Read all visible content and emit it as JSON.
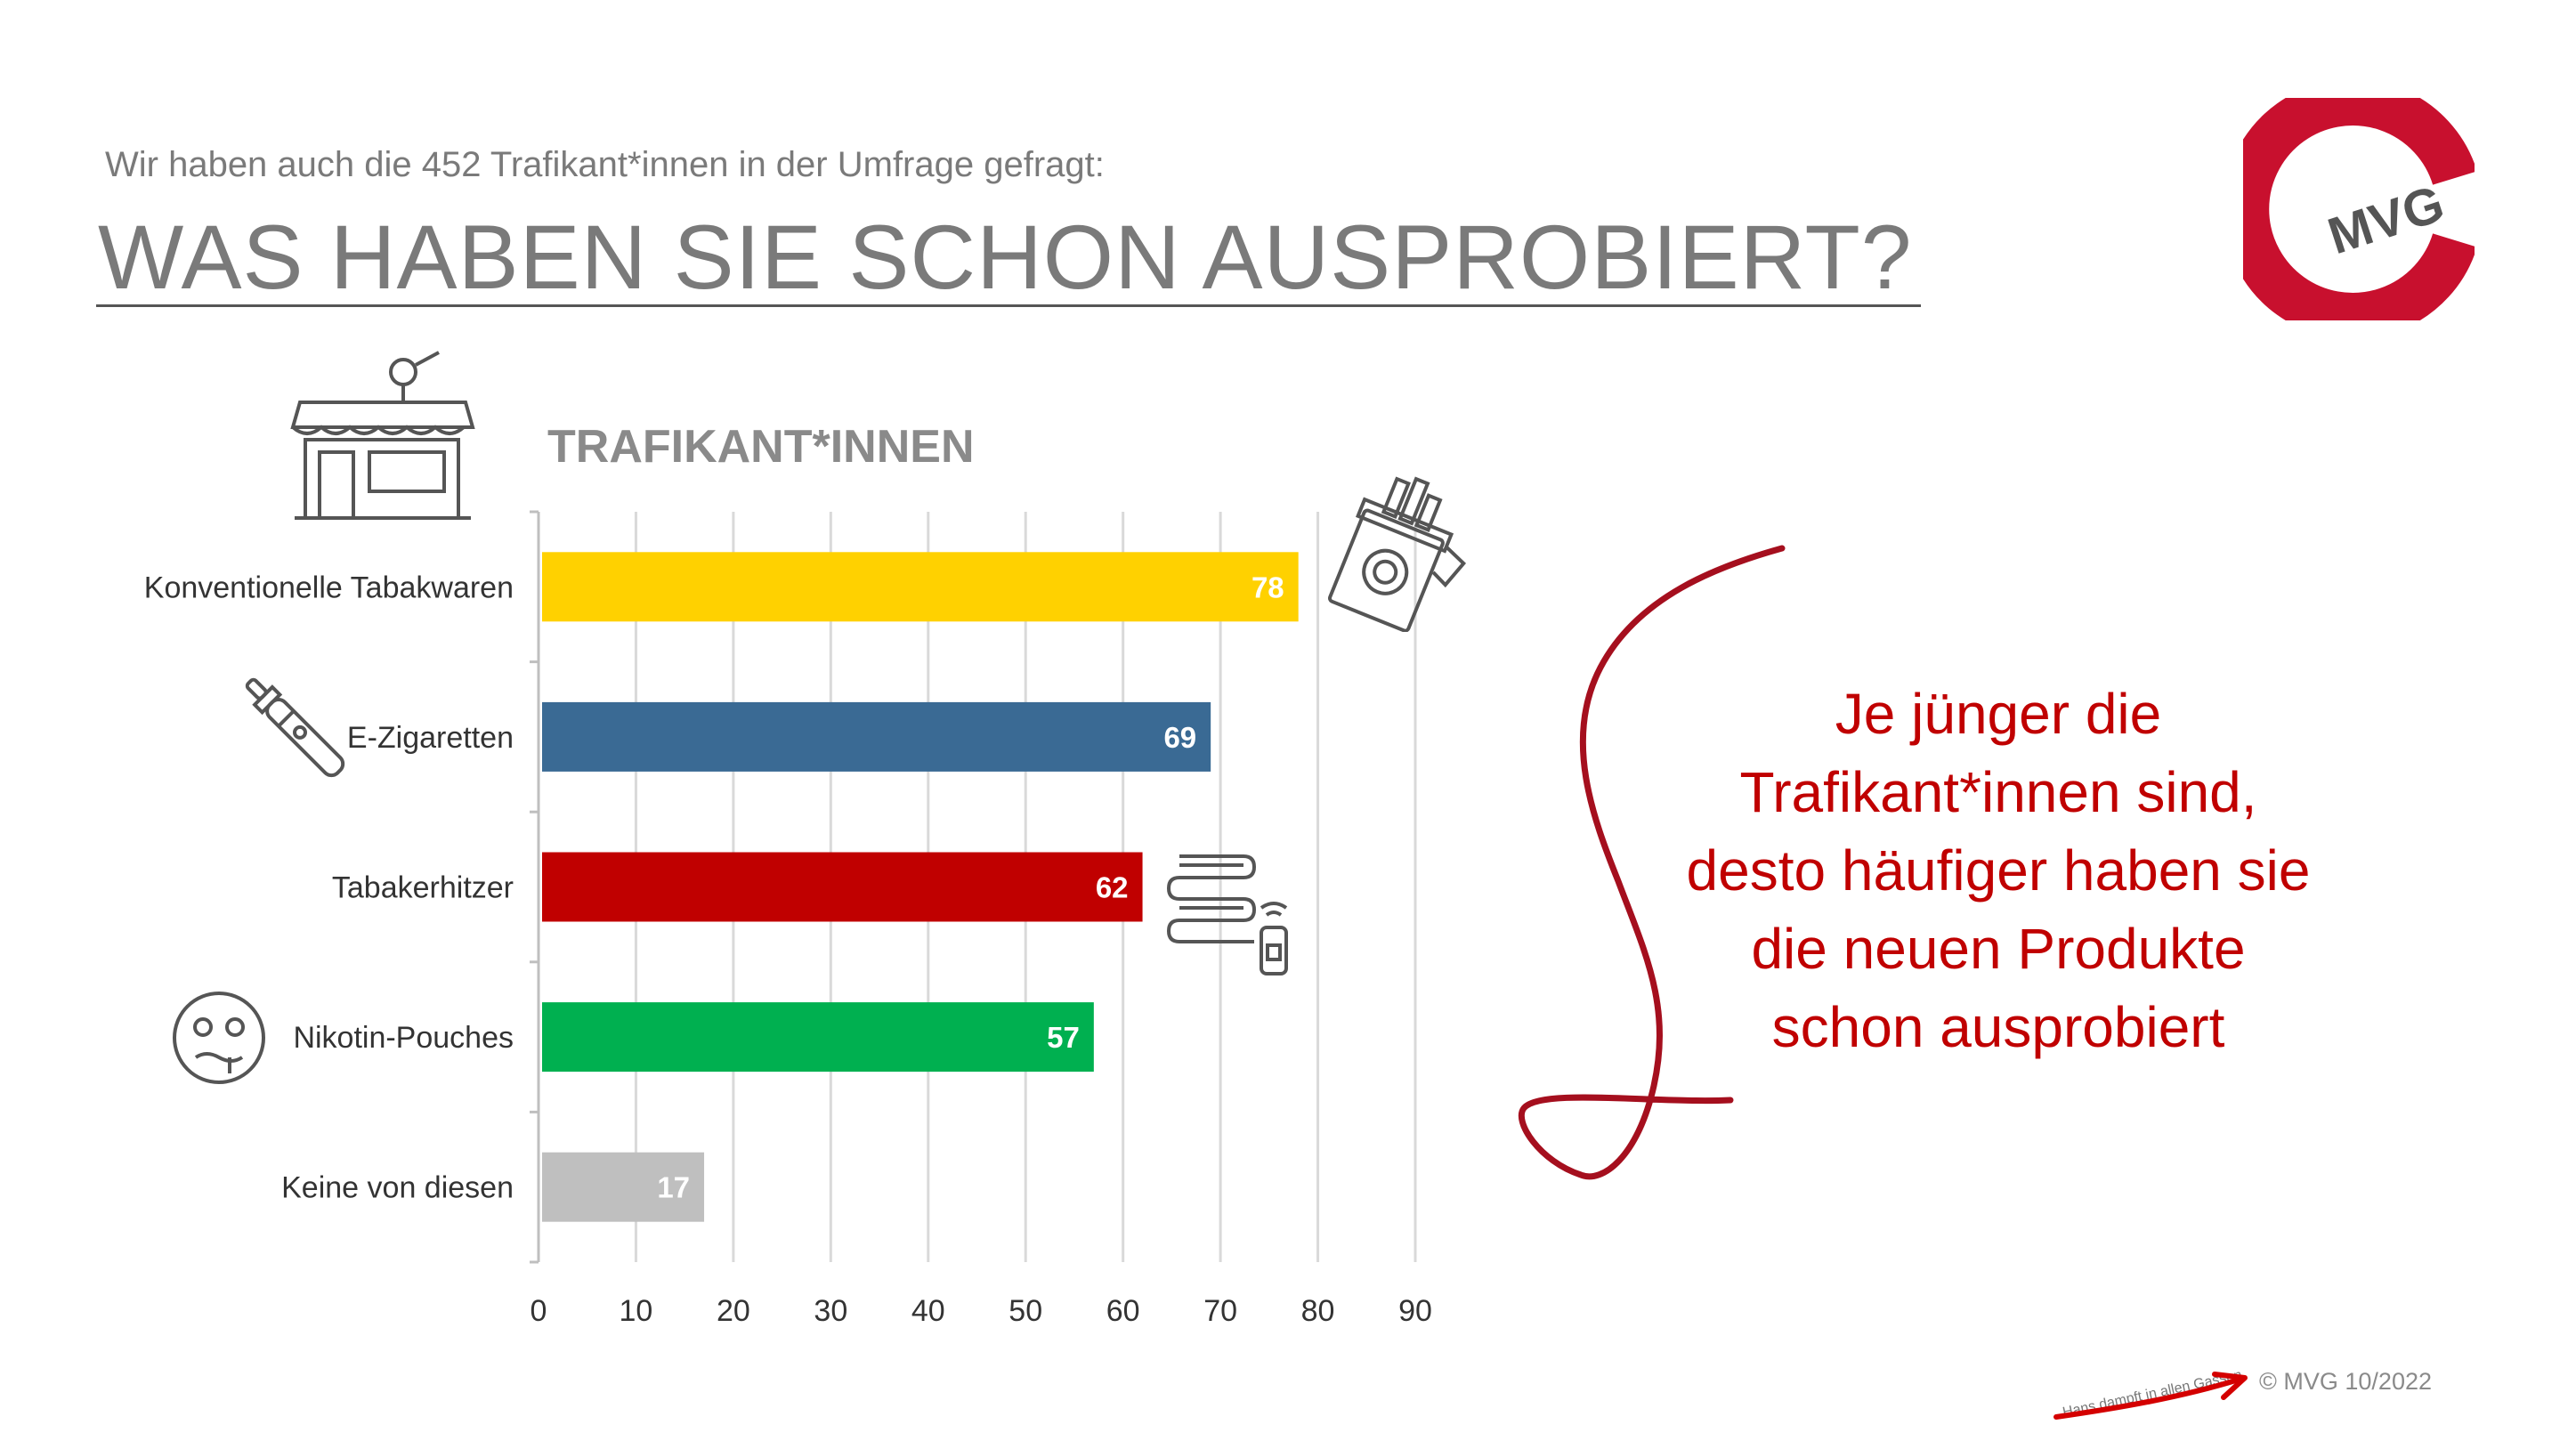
{
  "header": {
    "subtitle": "Wir haben auch die 452 Trafikant*innen in der Umfrage gefragt:",
    "title": "WAS HABEN SIE SCHON AUSPROBIERT?"
  },
  "logo": {
    "text": "MVG",
    "color": "#c8102e",
    "icon": "mvg-logo"
  },
  "chart_data": {
    "type": "bar",
    "orientation": "horizontal",
    "title": "TRAFIKANT*INNEN",
    "categories": [
      "Konventionelle Tabakwaren",
      "E-Zigaretten",
      "Tabakerhitzer",
      "Nikotin-Pouches",
      "Keine von diesen"
    ],
    "values": [
      78,
      69,
      62,
      57,
      17
    ],
    "colors": [
      "#ffd100",
      "#3a6a94",
      "#c00000",
      "#00b050",
      "#bfbfbf"
    ],
    "xlim": [
      0,
      90
    ],
    "xticks": [
      0,
      10,
      20,
      30,
      40,
      50,
      60,
      70,
      80,
      90
    ],
    "grid": true,
    "legend": "none"
  },
  "icons": [
    "kiosk-icon",
    "cigarette-pack-icon",
    "e-cigarette-icon",
    "heated-tobacco-icon",
    "nauseous-face-icon"
  ],
  "callout": {
    "lines": [
      "Je jünger die",
      "Trafikant*innen sind,",
      "desto häufiger haben sie",
      "die neuen Produkte",
      "schon ausprobiert"
    ],
    "color": "#c00000"
  },
  "footer": {
    "slogan": "Hans dampft in allen Gassen",
    "copyright": "© MVG 10/2022"
  }
}
